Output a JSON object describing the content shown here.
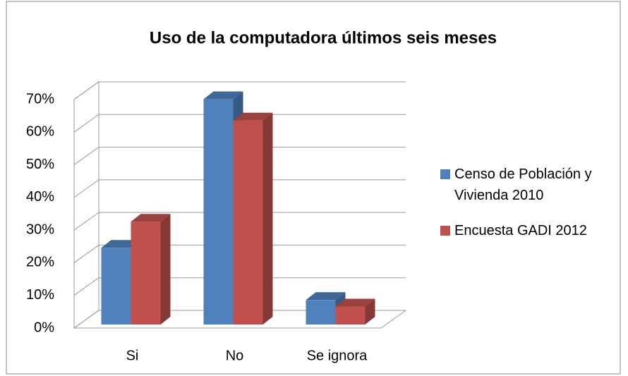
{
  "chart_data": {
    "type": "bar3d",
    "title": "Uso de la computadora últimos seis meses",
    "categories": [
      "Si",
      "No",
      "Se ignora"
    ],
    "series": [
      {
        "name": "Censo de Población y Vivienda 2010",
        "color": "#4f81bd",
        "values": [
          23.5,
          69,
          7.5
        ]
      },
      {
        "name": "Encuesta GADI 2012",
        "color": "#c0504d",
        "values": [
          31.5,
          62.5,
          5.5
        ]
      }
    ],
    "ylim": [
      0,
      70
    ],
    "yticks": [
      {
        "value": 0,
        "label": "0%"
      },
      {
        "value": 10,
        "label": "10%"
      },
      {
        "value": 20,
        "label": "20%"
      },
      {
        "value": 30,
        "label": "30%"
      },
      {
        "value": 40,
        "label": "40%"
      },
      {
        "value": 50,
        "label": "50%"
      },
      {
        "value": 60,
        "label": "60%"
      },
      {
        "value": 70,
        "label": "70%"
      }
    ],
    "grid": true,
    "legend": "right"
  }
}
